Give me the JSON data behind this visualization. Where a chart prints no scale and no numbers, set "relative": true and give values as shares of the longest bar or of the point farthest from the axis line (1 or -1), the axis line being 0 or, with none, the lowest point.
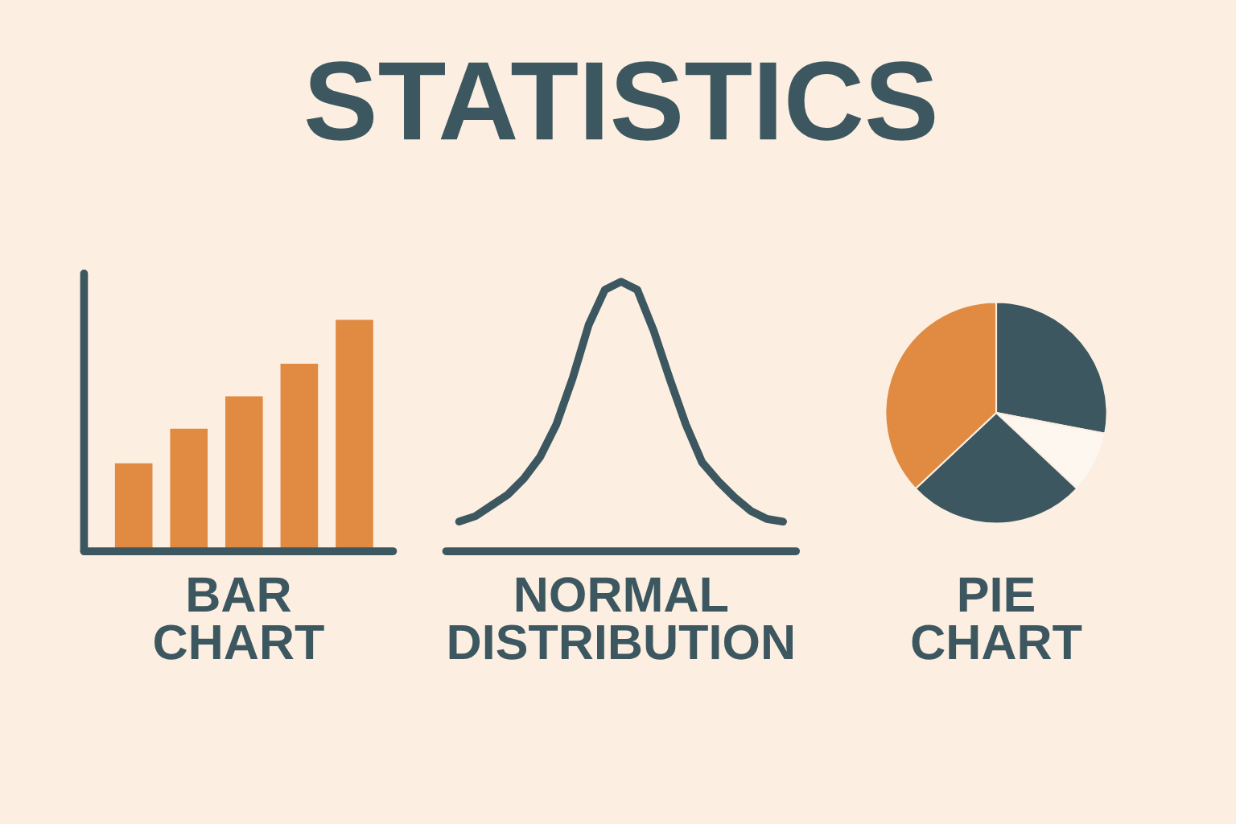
{
  "chart_data": [
    {
      "type": "bar",
      "xlabel": "BAR\nCHART",
      "relative": true,
      "categories": [
        null,
        null,
        null,
        null,
        null
      ],
      "values": [
        0.38,
        0.53,
        0.67,
        0.81,
        1
      ],
      "color": "#e08a42"
    },
    {
      "type": "line",
      "title": "STATISTICS",
      "xlabel": "NORMAL\nDISTRIBUTION",
      "relative": true,
      "categories": [
        null,
        null,
        null,
        null,
        null,
        null,
        null,
        null,
        null,
        null,
        null,
        null,
        null,
        null,
        null,
        null,
        null,
        null,
        null,
        null,
        null
      ],
      "series": [
        {
          "color": "#3d5760",
          "values": [
            0.11,
            0.13,
            0.17,
            0.21,
            0.27,
            0.35,
            0.47,
            0.64,
            0.84,
            0.97,
            1.0,
            0.97,
            0.82,
            0.64,
            0.47,
            0.33,
            0.26,
            0.2,
            0.15,
            0.12,
            0.11
          ]
        }
      ],
      "marker": "none",
      "line_style": "solid"
    },
    {
      "type": "pie",
      "xlabel": "PIE\nCHART",
      "categories": [
        null,
        null,
        null,
        null
      ],
      "values": [
        28,
        9,
        26,
        37
      ],
      "colors": [
        "#3d5760",
        "#fdf7f0",
        "#3d5760",
        "#e08a42"
      ]
    }
  ]
}
